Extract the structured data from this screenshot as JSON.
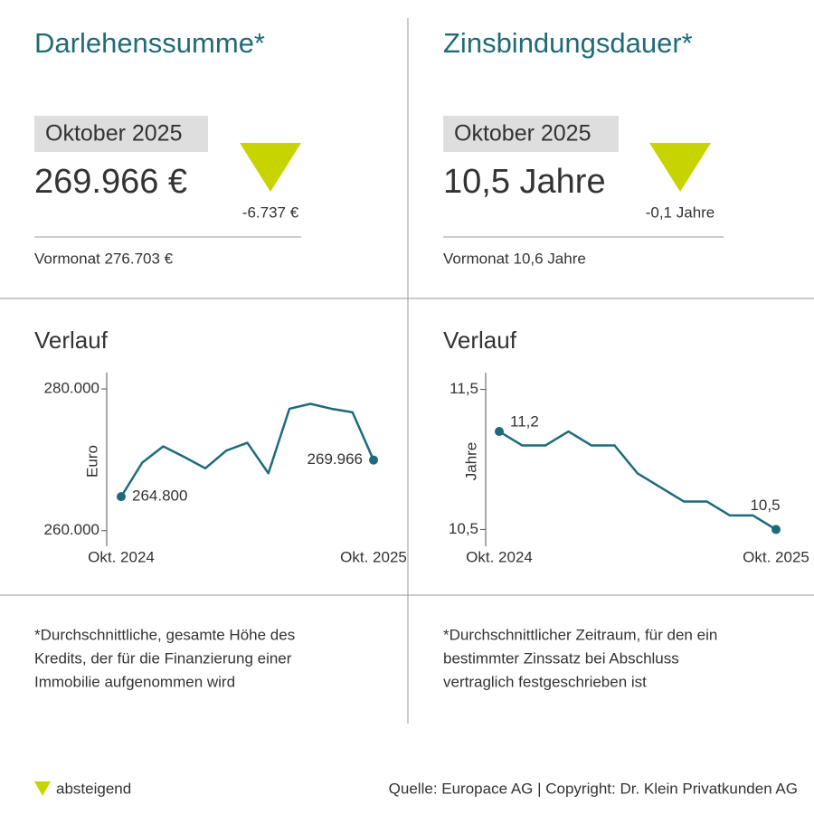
{
  "panels": [
    {
      "title": "Darlehenssumme*",
      "month": "Oktober 2025",
      "value": "269.966 €",
      "change": "-6.737 €",
      "previous": "Vormonat 276.703 €",
      "footnote": [
        "*Durchschnittliche, gesamte Höhe des",
        "Kredits, der für die Finanzierung einer",
        "Immobilie aufgenommen wird"
      ]
    },
    {
      "title": "Zinsbindungsdauer*",
      "month": "Oktober 2025",
      "value": "10,5 Jahre",
      "change": "-0,1 Jahre",
      "previous": "Vormonat 10,6 Jahre",
      "footnote": [
        "*Durchschnittlicher Zeitraum, für den ein",
        "bestimmter Zinssatz bei Abschluss",
        "vertraglich festgeschrieben ist"
      ]
    }
  ],
  "legend": "absteigend",
  "source": "Quelle: Europace AG | Copyright: Dr. Klein Privatkunden AG",
  "chart_data": [
    {
      "type": "line",
      "title": "Verlauf",
      "ylabel": "Euro",
      "color": "#1d6b7a",
      "categories": [
        "Okt. 2024",
        null,
        null,
        null,
        null,
        null,
        null,
        null,
        null,
        null,
        null,
        null,
        "Okt. 2025"
      ],
      "values": [
        264800,
        269600,
        271900,
        270400,
        268800,
        271300,
        272400,
        268100,
        277200,
        277900,
        277200,
        276703,
        269966
      ],
      "value_labels": [
        "264.800",
        null,
        null,
        null,
        null,
        null,
        null,
        null,
        null,
        null,
        null,
        null,
        "269.966"
      ],
      "ylim": [
        257800,
        282300
      ],
      "yticks": [
        {
          "value": 260000,
          "label": "260.000"
        },
        {
          "value": 280000,
          "label": "280.000"
        }
      ]
    },
    {
      "type": "line",
      "title": "Verlauf",
      "ylabel": "Jahre",
      "color": "#1d6b7a",
      "categories": [
        "Okt. 2024",
        null,
        null,
        null,
        null,
        null,
        null,
        null,
        null,
        null,
        null,
        null,
        "Okt. 2025"
      ],
      "values": [
        11.2,
        11.1,
        11.1,
        11.2,
        11.1,
        11.1,
        10.9,
        10.8,
        10.7,
        10.7,
        10.6,
        10.6,
        10.5
      ],
      "value_labels": [
        "11,2",
        null,
        null,
        null,
        null,
        null,
        null,
        null,
        null,
        null,
        null,
        null,
        "10,5"
      ],
      "ylim": [
        10.38,
        11.62
      ],
      "yticks": [
        {
          "value": 10.5,
          "label": "10,5"
        },
        {
          "value": 11.5,
          "label": "11,5"
        }
      ]
    }
  ]
}
